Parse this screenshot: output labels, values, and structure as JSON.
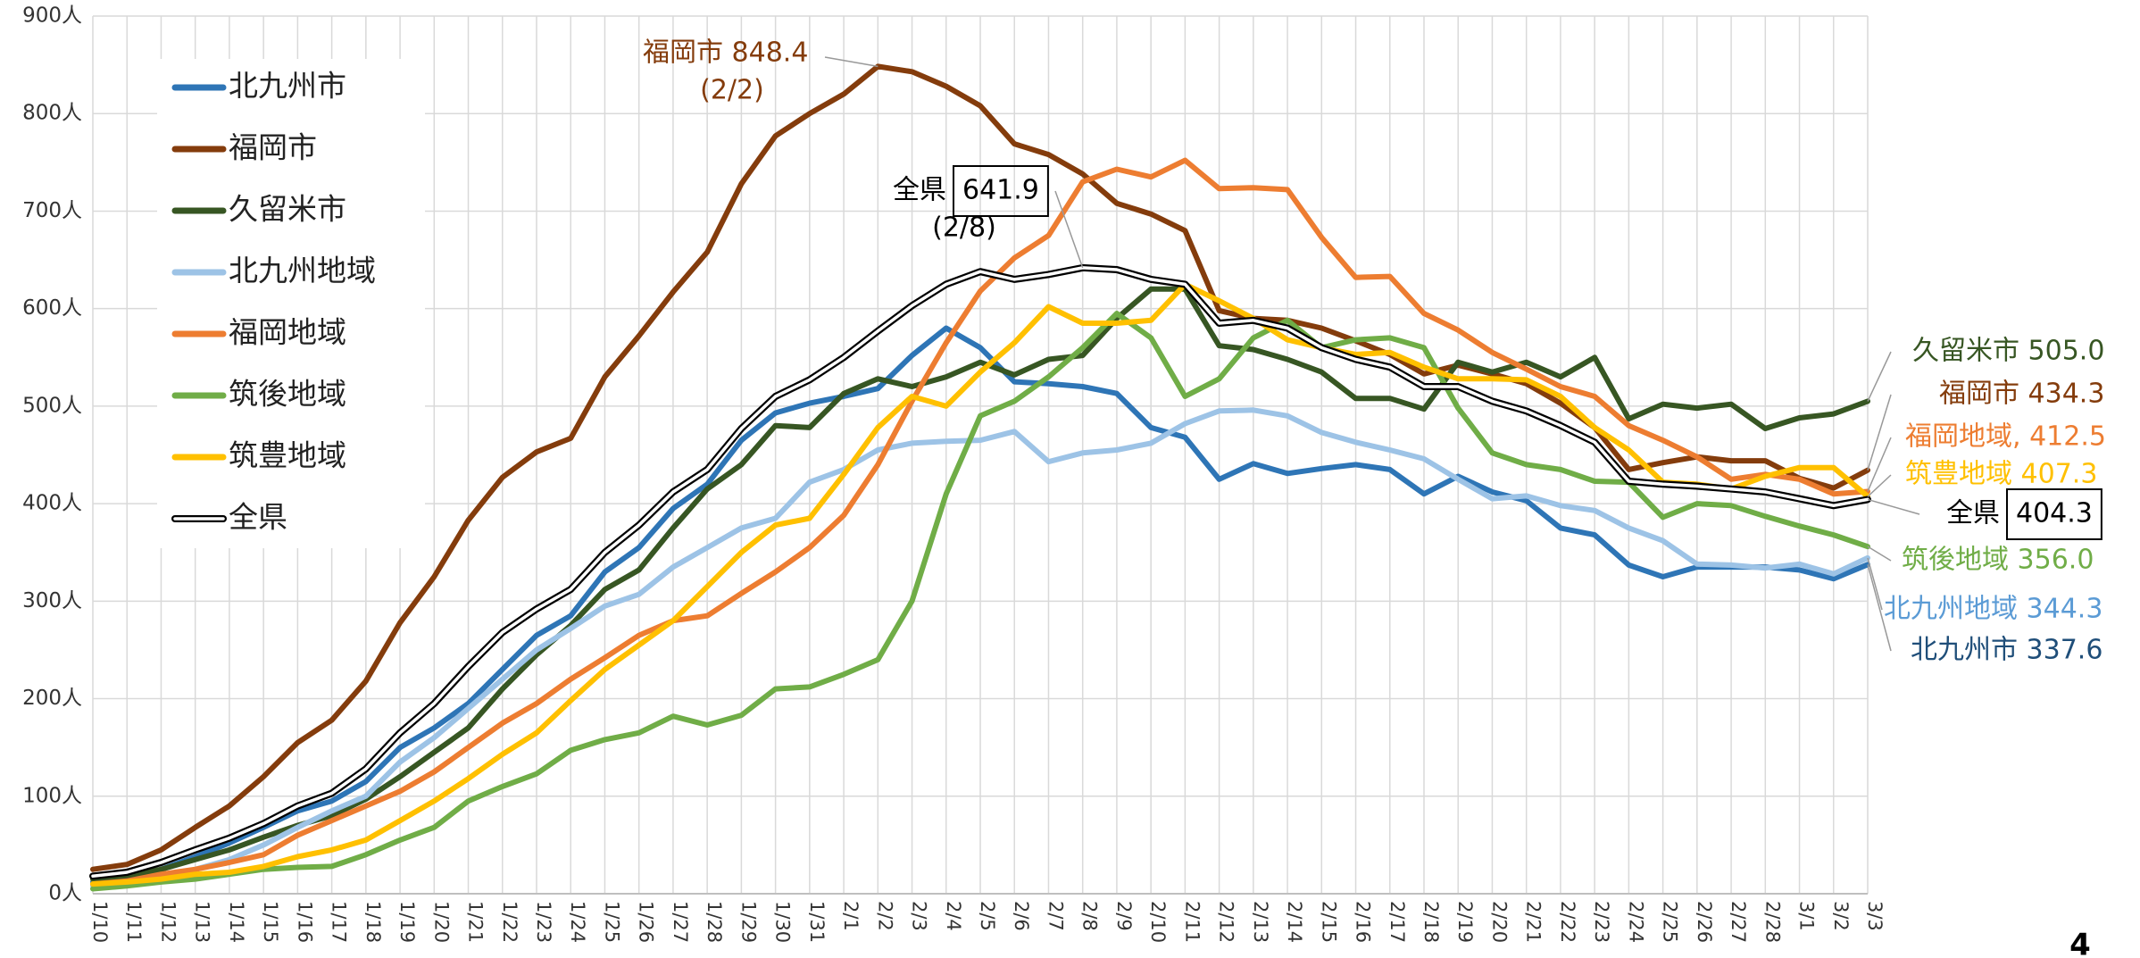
{
  "chart_data": {
    "type": "line",
    "categories": [
      "1/10",
      "1/11",
      "1/12",
      "1/13",
      "1/14",
      "1/15",
      "1/16",
      "1/17",
      "1/18",
      "1/19",
      "1/20",
      "1/21",
      "1/22",
      "1/23",
      "1/24",
      "1/25",
      "1/26",
      "1/27",
      "1/28",
      "1/29",
      "1/30",
      "1/31",
      "2/1",
      "2/2",
      "2/3",
      "2/4",
      "2/5",
      "2/6",
      "2/7",
      "2/8",
      "2/9",
      "2/10",
      "2/11",
      "2/12",
      "2/13",
      "2/14",
      "2/15",
      "2/16",
      "2/17",
      "2/18",
      "2/19",
      "2/20",
      "2/21",
      "2/22",
      "2/23",
      "2/24",
      "2/25",
      "2/26",
      "2/27",
      "2/28",
      "3/1",
      "3/2",
      "3/3"
    ],
    "ylim": [
      0,
      900
    ],
    "yticks": [
      {
        "value": 0,
        "label": "0人"
      },
      {
        "value": 100,
        "label": "100人"
      },
      {
        "value": 200,
        "label": "200人"
      },
      {
        "value": 300,
        "label": "300人"
      },
      {
        "value": 400,
        "label": "400人"
      },
      {
        "value": 500,
        "label": "500人"
      },
      {
        "value": 600,
        "label": "600人"
      },
      {
        "value": 700,
        "label": "700人"
      },
      {
        "value": 800,
        "label": "800人"
      },
      {
        "value": 900,
        "label": "900人"
      }
    ],
    "grid": true,
    "series": [
      {
        "name": "北九州市",
        "color": "#2e75b6",
        "values": [
          12,
          15,
          25,
          38,
          52,
          68,
          85,
          95,
          115,
          150,
          170,
          195,
          230,
          265,
          285,
          330,
          355,
          395,
          420,
          465,
          493,
          503,
          510,
          518,
          552,
          580,
          560,
          525,
          523,
          520,
          513,
          478,
          468,
          425,
          441,
          431,
          436,
          440,
          435,
          410,
          428,
          412,
          403,
          375,
          368,
          337,
          325,
          335,
          335,
          335,
          332,
          323,
          337.6
        ]
      },
      {
        "name": "福岡市",
        "color": "#843c0c",
        "values": [
          25,
          30,
          45,
          68,
          90,
          120,
          155,
          178,
          218,
          278,
          325,
          383,
          427,
          453,
          467,
          530,
          572,
          617,
          658,
          728,
          777,
          800,
          820,
          848.4,
          843,
          828,
          808,
          769,
          758,
          738,
          708,
          697,
          680,
          598,
          590,
          588,
          580,
          567,
          553,
          533,
          542,
          533,
          523,
          503,
          478,
          435,
          442,
          448,
          444,
          444,
          426,
          416,
          434.3
        ]
      },
      {
        "name": "久留米市",
        "color": "#375623",
        "values": [
          15,
          18,
          25,
          35,
          45,
          58,
          70,
          80,
          97,
          120,
          145,
          170,
          210,
          245,
          275,
          312,
          332,
          375,
          415,
          440,
          480,
          478,
          513,
          528,
          520,
          530,
          545,
          532,
          548,
          552,
          590,
          620,
          620,
          562,
          558,
          548,
          535,
          508,
          508,
          497,
          545,
          535,
          545,
          530,
          550,
          487,
          502,
          498,
          502,
          477,
          488,
          492,
          505.0
        ]
      },
      {
        "name": "北九州地域",
        "color": "#9dc3e6",
        "values": [
          8,
          10,
          15,
          25,
          35,
          50,
          68,
          85,
          100,
          135,
          160,
          190,
          220,
          250,
          272,
          295,
          307,
          335,
          355,
          375,
          385,
          422,
          435,
          455,
          462,
          464,
          465,
          474,
          443,
          452,
          455,
          462,
          482,
          495,
          496,
          490,
          473,
          463,
          455,
          446,
          425,
          405,
          408,
          398,
          393,
          375,
          362,
          338,
          337,
          334,
          338,
          328,
          344.3
        ]
      },
      {
        "name": "福岡地域",
        "color": "#ed7d31",
        "values": [
          10,
          13,
          20,
          25,
          32,
          40,
          60,
          75,
          90,
          105,
          125,
          150,
          175,
          195,
          220,
          242,
          265,
          280,
          285,
          308,
          330,
          355,
          388,
          440,
          505,
          565,
          618,
          652,
          675,
          730,
          743,
          735,
          752,
          723,
          724,
          722,
          673,
          632,
          633,
          595,
          578,
          555,
          538,
          520,
          510,
          480,
          465,
          448,
          425,
          430,
          425,
          410,
          412.5
        ]
      },
      {
        "name": "筑後地域",
        "color": "#70ad47",
        "values": [
          5,
          8,
          12,
          15,
          20,
          25,
          27,
          28,
          40,
          55,
          68,
          95,
          110,
          123,
          147,
          158,
          165,
          182,
          173,
          183,
          210,
          212,
          225,
          240,
          300,
          410,
          490,
          505,
          530,
          560,
          595,
          570,
          510,
          528,
          570,
          588,
          560,
          568,
          570,
          560,
          498,
          452,
          440,
          435,
          423,
          422,
          386,
          400,
          398,
          387,
          377,
          368,
          356.0
        ]
      },
      {
        "name": "筑豊地域",
        "color": "#ffc000",
        "values": [
          10,
          12,
          15,
          20,
          22,
          28,
          38,
          45,
          55,
          75,
          95,
          118,
          143,
          165,
          198,
          230,
          255,
          280,
          315,
          350,
          378,
          385,
          430,
          478,
          510,
          500,
          535,
          565,
          602,
          585,
          585,
          588,
          625,
          608,
          590,
          568,
          560,
          553,
          555,
          540,
          528,
          528,
          527,
          510,
          478,
          455,
          422,
          420,
          415,
          428,
          437,
          437,
          407.3
        ]
      },
      {
        "name": "全県",
        "color": "#000000",
        "outline": true,
        "values": [
          18,
          22,
          32,
          45,
          57,
          72,
          90,
          103,
          128,
          165,
          195,
          233,
          268,
          292,
          312,
          350,
          378,
          412,
          435,
          477,
          510,
          527,
          550,
          577,
          603,
          625,
          638,
          630,
          635,
          641.9,
          640,
          630,
          625,
          585,
          588,
          580,
          560,
          548,
          540,
          520,
          520,
          505,
          495,
          480,
          463,
          423,
          420,
          418,
          415,
          412,
          405,
          398,
          404.3
        ]
      }
    ],
    "annotations": [
      {
        "text": "福岡市 848.4",
        "sub": "(2/2)",
        "color": "#843c0c"
      },
      {
        "text": "全県",
        "boxed": "641.9",
        "sub": "(2/8)",
        "color": "#000000"
      },
      {
        "text": "久留米市 505.0",
        "color": "#375623"
      },
      {
        "text": "福岡市 434.3",
        "color": "#843c0c"
      },
      {
        "text": "福岡地域, 412.5",
        "color": "#ed7d31"
      },
      {
        "text": "筑豊地域 407.3",
        "color": "#ffc000"
      },
      {
        "text": "全県",
        "boxed": "404.3",
        "color": "#000000"
      },
      {
        "text": "筑後地域 356.0",
        "color": "#70ad47"
      },
      {
        "text": "北九州地域 344.3",
        "color": "#5b9bd5"
      },
      {
        "text": "北九州市 337.6",
        "color": "#1f4e79"
      }
    ],
    "page_number": "4"
  }
}
